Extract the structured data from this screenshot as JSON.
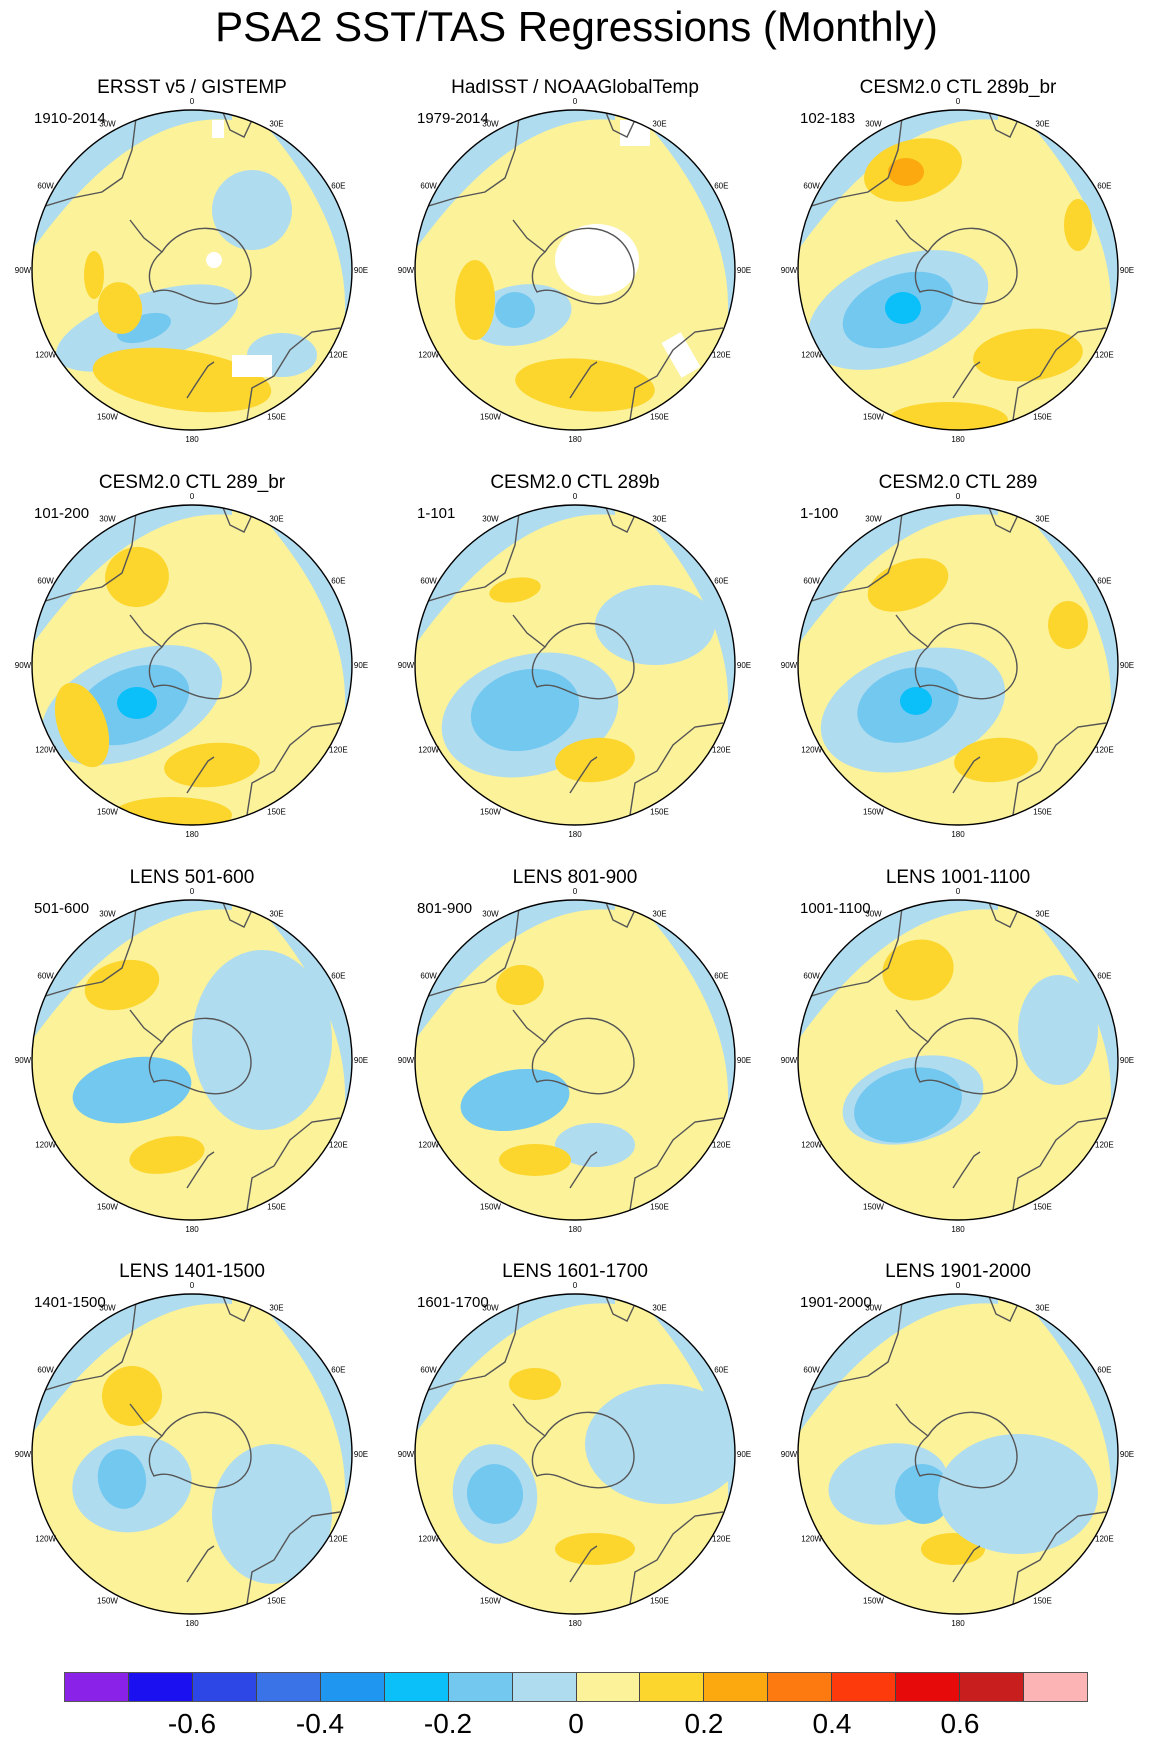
{
  "title": "PSA2 SST/TAS Regressions (Monthly)",
  "map_type": "south-polar stereographic regression maps",
  "longitude_labels": [
    "0",
    "30E",
    "60E",
    "90E",
    "120E",
    "150E",
    "180",
    "150W",
    "120W",
    "90W",
    "60W",
    "30W"
  ],
  "panels": [
    {
      "title": "ERSST v5 / GISTEMP",
      "period": "1910-2014",
      "missing_data": true
    },
    {
      "title": "HadISST / NOAAGlobalTemp",
      "period": "1979-2014",
      "missing_data": true
    },
    {
      "title": "CESM2.0 CTL 289b_br",
      "period": "102-183"
    },
    {
      "title": "CESM2.0 CTL 289_br",
      "period": "101-200"
    },
    {
      "title": "CESM2.0 CTL 289b",
      "period": "1-101"
    },
    {
      "title": "CESM2.0 CTL 289",
      "period": "1-100"
    },
    {
      "title": "LENS 501-600",
      "period": "501-600"
    },
    {
      "title": "LENS 801-900",
      "period": "801-900"
    },
    {
      "title": "LENS 1001-1100",
      "period": "1001-1100"
    },
    {
      "title": "LENS 1401-1500",
      "period": "1401-1500"
    },
    {
      "title": "LENS 1601-1700",
      "period": "1601-1700"
    },
    {
      "title": "LENS 1901-2000",
      "period": "1901-2000"
    }
  ],
  "colorbar": {
    "colors": [
      "#8a22e8",
      "#1a10f0",
      "#2d46e6",
      "#3a72e8",
      "#1f96f0",
      "#0bbff8",
      "#73c8f0",
      "#b0dcf0",
      "#fbf29a",
      "#fcd52d",
      "#fca80f",
      "#fc7a10",
      "#fc3a0c",
      "#e60a0a",
      "#c81e1e",
      "#fcb4b4"
    ],
    "labels": [
      "-0.6",
      "-0.4",
      "-0.2",
      "0",
      "0.2",
      "0.4",
      "0.6"
    ]
  },
  "palette": {
    "weak_positive": "#fbf29a",
    "weak_negative": "#b0dcf0",
    "moderate_negative": "#73c8f0",
    "strong_negative": "#0bbff8",
    "moderate_positive": "#fcd52d",
    "strong_positive": "#fca80f",
    "missing": "#ffffff",
    "coast": "#555555"
  }
}
